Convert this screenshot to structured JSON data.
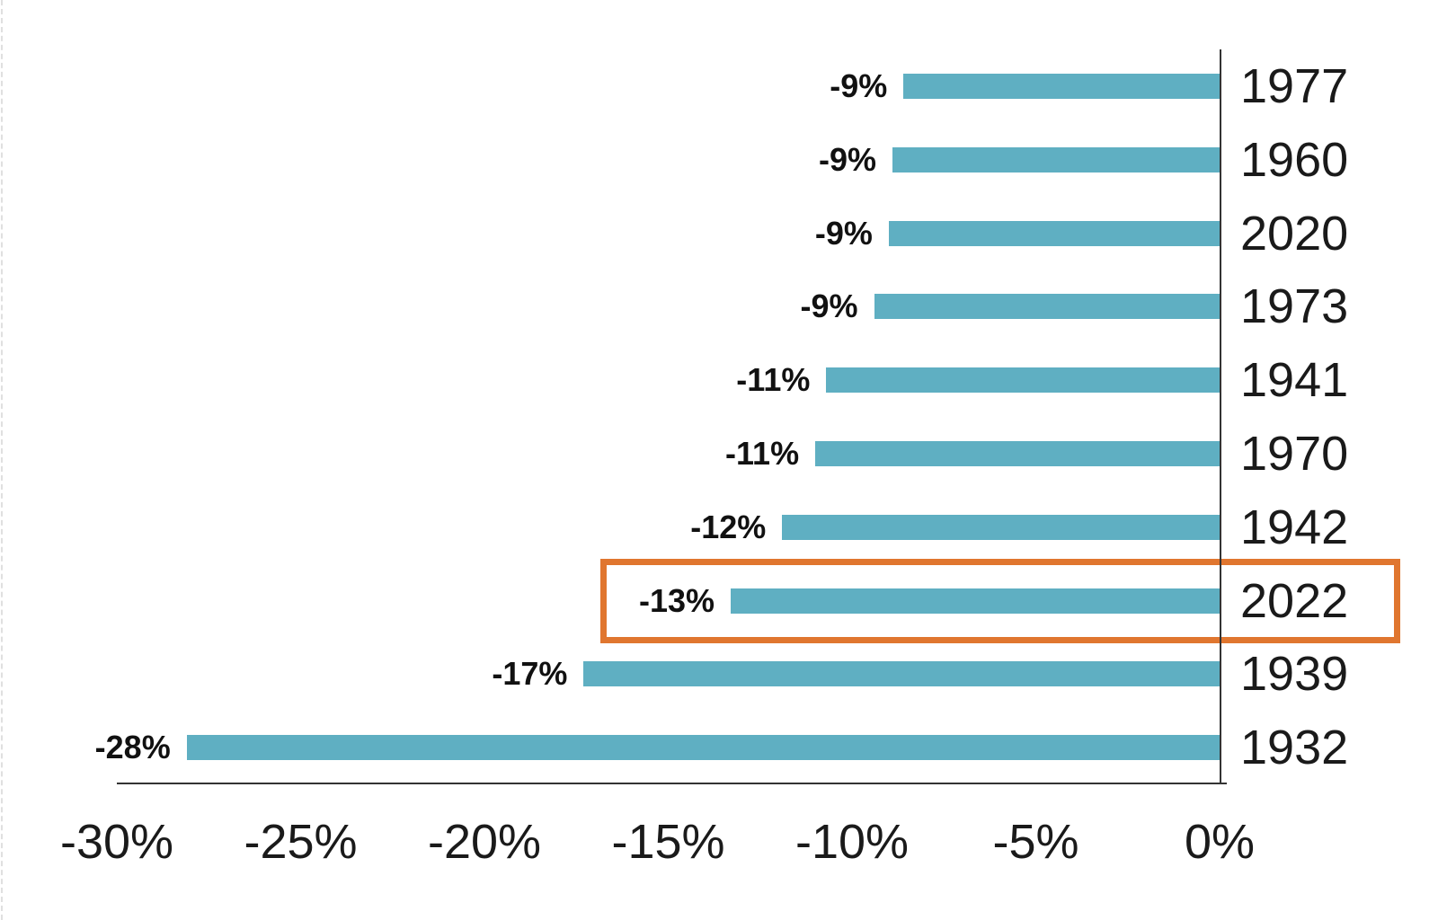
{
  "chart_data": {
    "type": "bar",
    "orientation": "horizontal-negative",
    "title": "",
    "xlabel": "",
    "ylabel": "",
    "categories": [
      "1977",
      "1960",
      "2020",
      "1973",
      "1941",
      "1970",
      "1942",
      "2022",
      "1939",
      "1932"
    ],
    "values": [
      -8.6,
      -8.9,
      -9.0,
      -9.4,
      -10.7,
      -11.0,
      -11.9,
      -13.3,
      -17.3,
      -28.1
    ],
    "bar_labels": [
      "-9%",
      "-9%",
      "-9%",
      "-9%",
      "-11%",
      "-11%",
      "-12%",
      "-13%",
      "-17%",
      "-28%"
    ],
    "x_axis": {
      "min": -30,
      "max": 0,
      "tick_labels": [
        "-30%",
        "-25%",
        "-20%",
        "-15%",
        "-10%",
        "-5%",
        "0%"
      ],
      "tick_values": [
        -30,
        -25,
        -20,
        -15,
        -10,
        -5,
        0
      ]
    },
    "grid": false,
    "legend": false,
    "highlight": {
      "category": "2022",
      "label": "-13%",
      "style": "orange-outline-box"
    }
  },
  "colors": {
    "bar": "#5FAFC2",
    "highlight_border": "#E0762F",
    "axis_line": "#333333",
    "text": "#1a1a1a",
    "value_text": "#111111",
    "background": "#ffffff"
  }
}
